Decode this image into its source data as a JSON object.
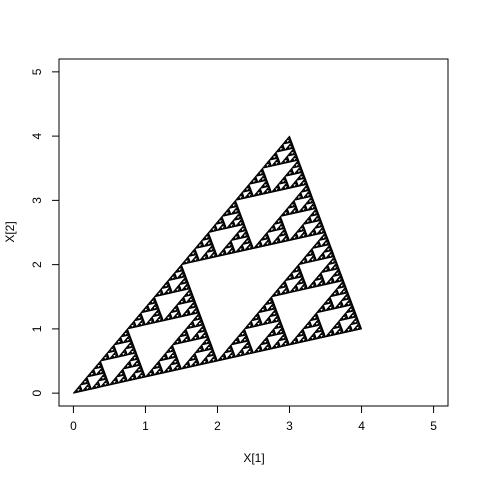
{
  "colors": {
    "points": "#000000",
    "axis": "#000000",
    "background": "#ffffff"
  },
  "chart_data": {
    "type": "scatter",
    "title": "",
    "xlabel": "X[1]",
    "ylabel": "X[2]",
    "xlim": [
      -0.2,
      5.2
    ],
    "ylim": [
      -0.2,
      5.2
    ],
    "x_ticks": [
      0,
      1,
      2,
      3,
      4,
      5
    ],
    "y_ticks": [
      0,
      1,
      2,
      3,
      4,
      5
    ],
    "x_tick_labels": [
      "0",
      "1",
      "2",
      "3",
      "4",
      "5"
    ],
    "y_tick_labels": [
      "0",
      "1",
      "2",
      "3",
      "4",
      "5"
    ],
    "grid": false,
    "legend": "none",
    "shape": "sierpinski-triangle",
    "vertices": [
      [
        0,
        0
      ],
      [
        3,
        4
      ],
      [
        4,
        1
      ]
    ],
    "depth": 7
  }
}
